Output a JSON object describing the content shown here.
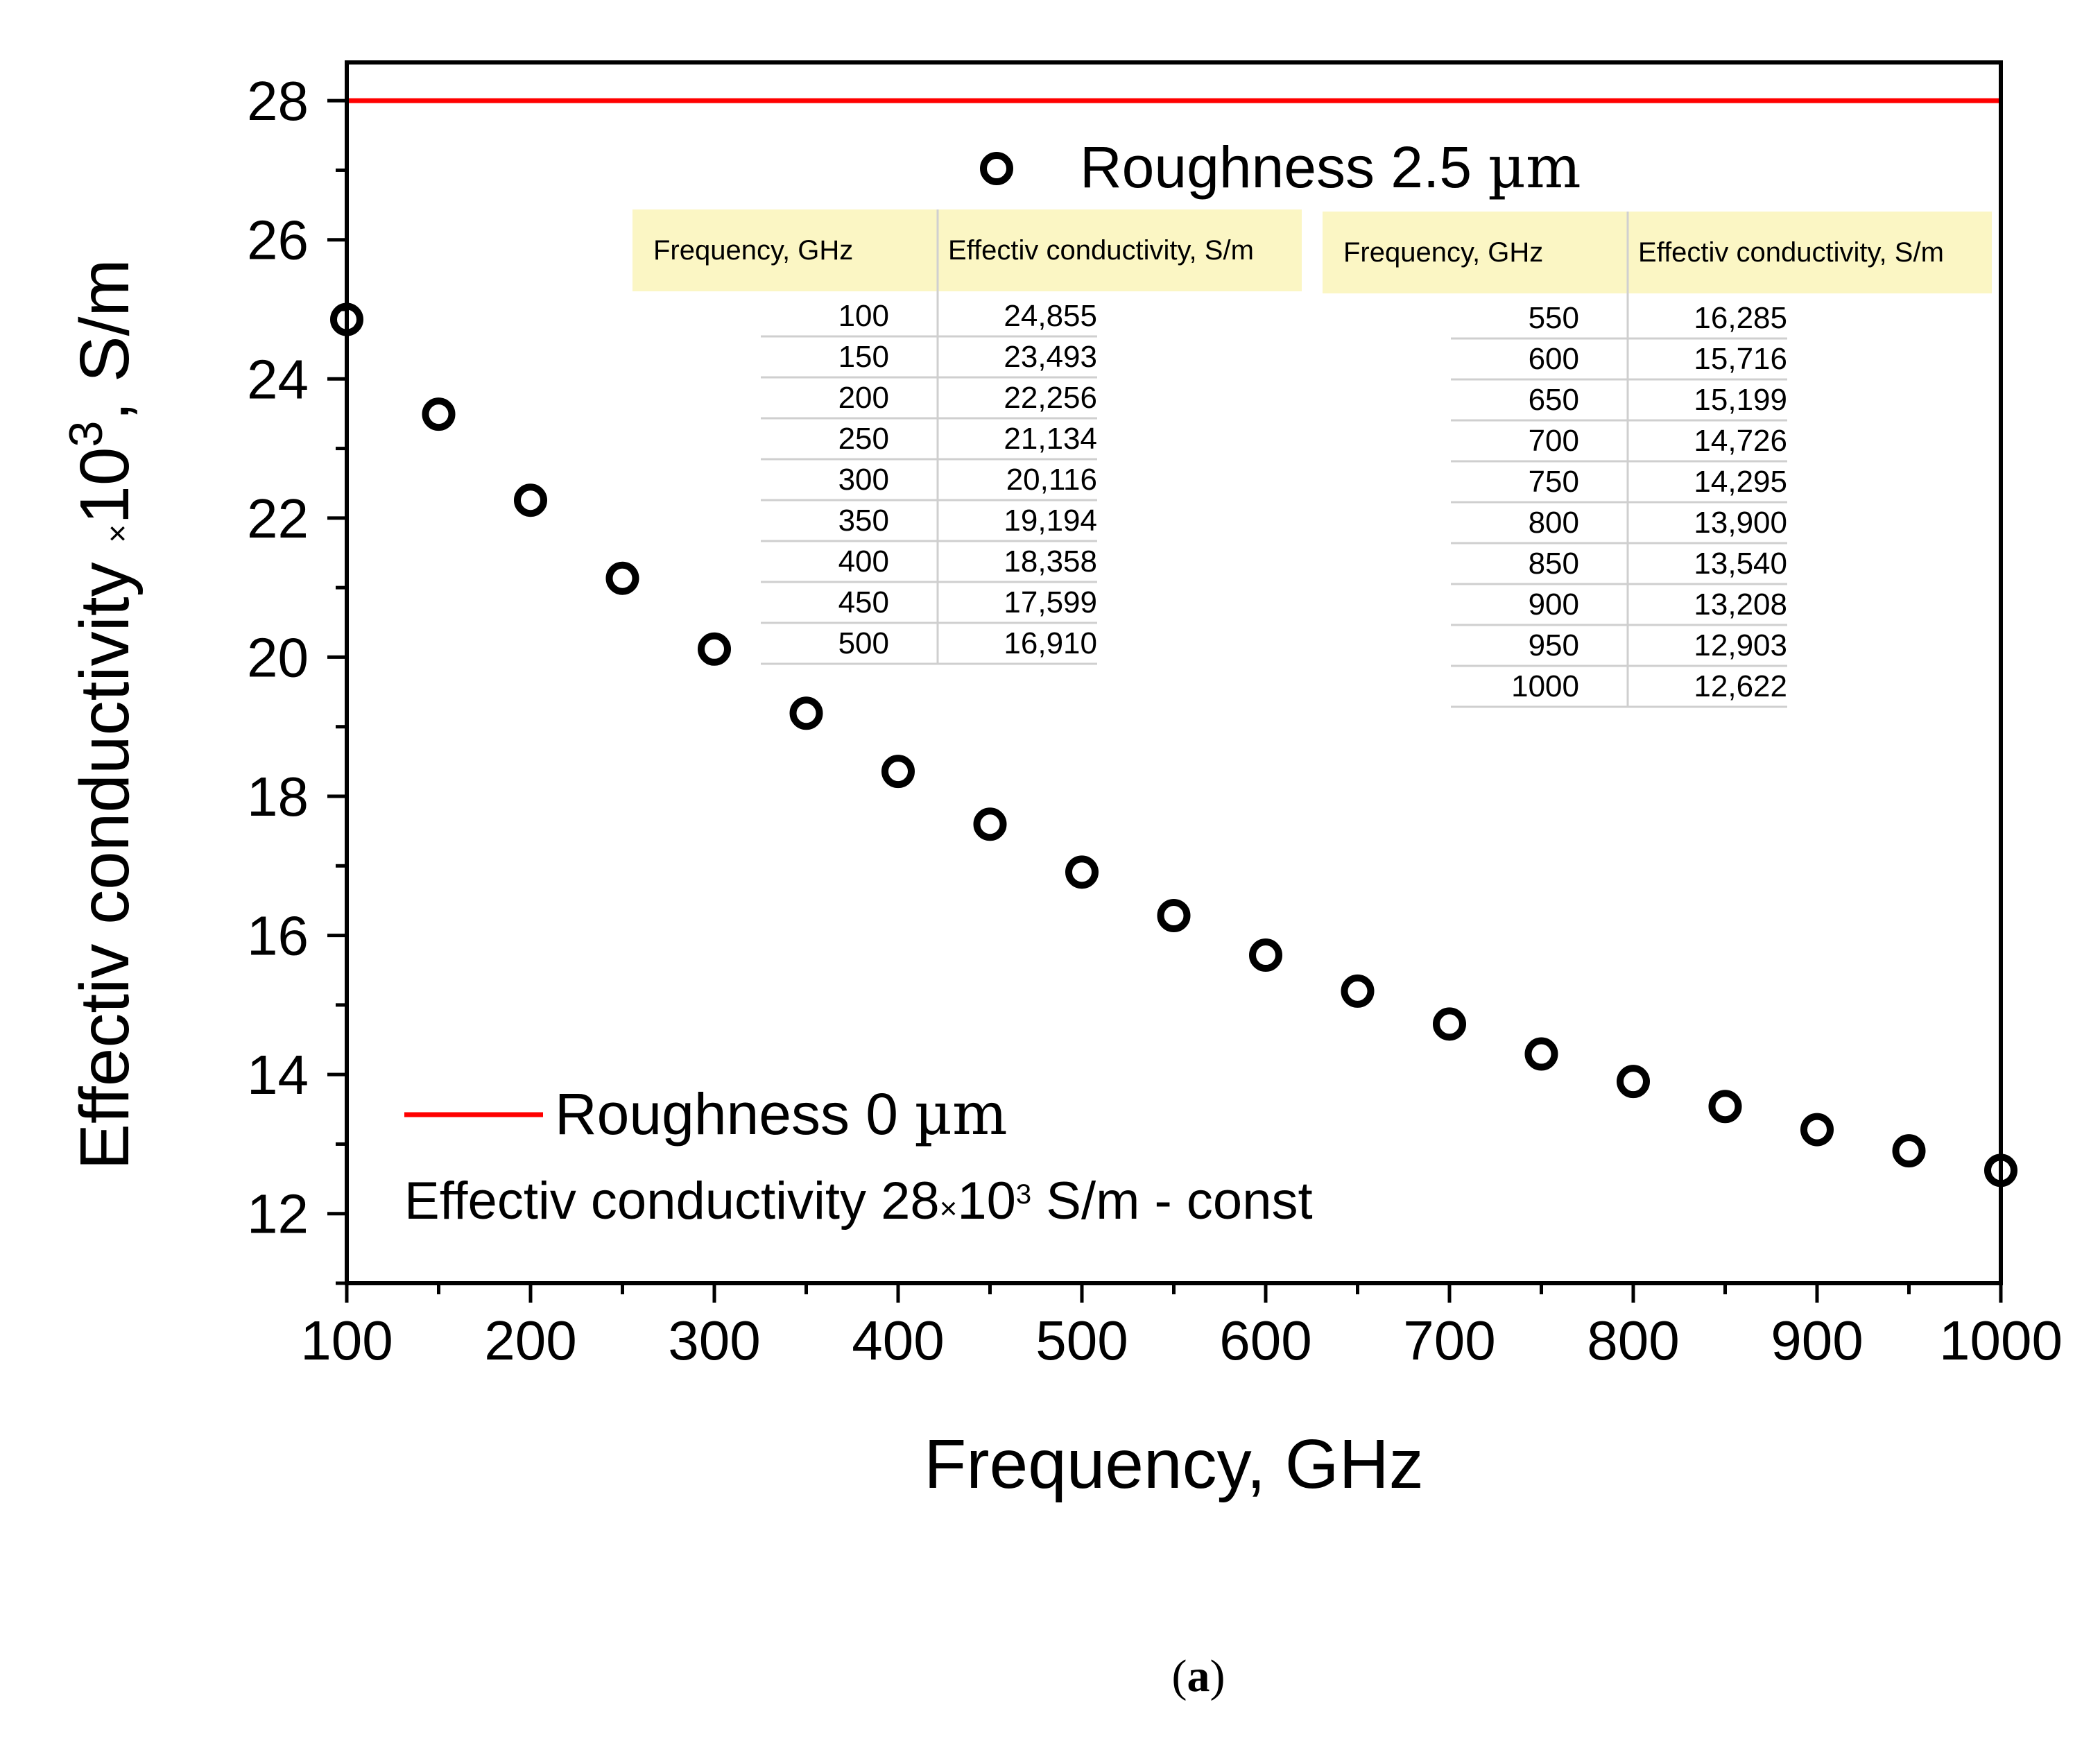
{
  "chart_data": {
    "type": "scatter",
    "title": "",
    "xlabel": "Frequency, GHz",
    "ylabel": {
      "prefix": "Effectiv conductivity",
      "times": "×",
      "base": "10",
      "exponent": "3",
      "suffix": ", S/m"
    },
    "xlim": [
      100,
      1000
    ],
    "ylim": [
      11,
      28.55
    ],
    "x_ticks": [
      100,
      200,
      300,
      400,
      500,
      600,
      700,
      800,
      900,
      1000
    ],
    "y_ticks": [
      12,
      14,
      16,
      18,
      20,
      22,
      24,
      26,
      28
    ],
    "grid": false,
    "series": [
      {
        "name": "Roughness 0 µm",
        "kind": "line",
        "color": "#ff0000",
        "x": [
          100,
          1000
        ],
        "y": [
          28,
          28
        ]
      },
      {
        "name": "Roughness 2.5 µm",
        "kind": "scatter",
        "marker": "open-circle",
        "color": "#000000",
        "x": [
          100,
          150,
          200,
          250,
          300,
          350,
          400,
          450,
          500,
          550,
          600,
          650,
          700,
          750,
          800,
          850,
          900,
          950,
          1000
        ],
        "y": [
          24.855,
          23.493,
          22.256,
          21.134,
          20.116,
          19.194,
          18.358,
          17.599,
          16.91,
          16.285,
          15.716,
          15.199,
          14.726,
          14.295,
          13.9,
          13.54,
          13.208,
          12.903,
          12.622
        ]
      }
    ],
    "legend_top": {
      "label_prefix": "Roughness 2.5 ",
      "label_unit": "µm",
      "placement": "top-center"
    },
    "legend_bottom": {
      "label_prefix": "Roughness 0 ",
      "label_unit": "µm",
      "note_prefix": "Effectiv conductivity 28",
      "note_times": "×",
      "note_base": "10",
      "note_exp": "3",
      "note_suffix": " S/m - const",
      "placement": "bottom-left"
    },
    "tables": {
      "col1_header": "Frequency, GHz",
      "col2_header": "Effectiv conductivity, S/m",
      "left": [
        [
          "100",
          "24,855"
        ],
        [
          "150",
          "23,493"
        ],
        [
          "200",
          "22,256"
        ],
        [
          "250",
          "21,134"
        ],
        [
          "300",
          "20,116"
        ],
        [
          "350",
          "19,194"
        ],
        [
          "400",
          "18,358"
        ],
        [
          "450",
          "17,599"
        ],
        [
          "500",
          "16,910"
        ]
      ],
      "right": [
        [
          "550",
          "16,285"
        ],
        [
          "600",
          "15,716"
        ],
        [
          "650",
          "15,199"
        ],
        [
          "700",
          "14,726"
        ],
        [
          "750",
          "14,295"
        ],
        [
          "800",
          "13,900"
        ],
        [
          "850",
          "13,540"
        ],
        [
          "900",
          "13,208"
        ],
        [
          "950",
          "12,903"
        ],
        [
          "1000",
          "12,622"
        ]
      ]
    }
  },
  "caption": "(a)"
}
